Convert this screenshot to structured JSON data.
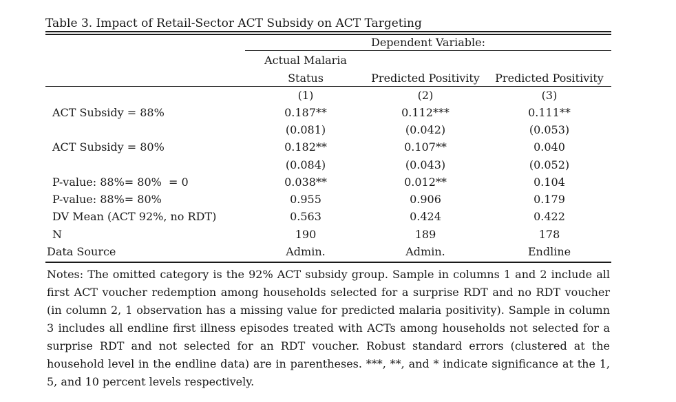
{
  "table": {
    "caption": "Table 3. Impact of Retail-Sector ACT Subsidy on ACT Targeting",
    "spanner": "Dependent Variable:",
    "headers": {
      "col1_line1": "Actual Malaria",
      "col1_line2": "Status",
      "col2": "Predicted Positivity",
      "col3": "Predicted Positivity"
    },
    "col_numbers": [
      "(1)",
      "(2)",
      "(3)"
    ],
    "rows": [
      {
        "label": "ACT Subsidy = 88%",
        "values": [
          "0.187**",
          "0.112***",
          "0.111**"
        ]
      },
      {
        "label": "",
        "values": [
          "(0.081)",
          "(0.042)",
          "(0.053)"
        ]
      },
      {
        "label": "ACT Subsidy = 80%",
        "values": [
          "0.182**",
          "0.107**",
          "0.040"
        ]
      },
      {
        "label": "",
        "values": [
          "(0.084)",
          "(0.043)",
          "(0.052)"
        ]
      },
      {
        "label": "P-value: 88%= 80%  = 0",
        "values": [
          "0.038**",
          "0.012**",
          "0.104"
        ]
      },
      {
        "label": "P-value: 88%= 80%",
        "values": [
          "0.955",
          "0.906",
          "0.179"
        ]
      },
      {
        "label": "DV Mean (ACT 92%, no RDT)",
        "values": [
          "0.563",
          "0.424",
          "0.422"
        ]
      },
      {
        "label": "N",
        "values": [
          "190",
          "189",
          "178"
        ]
      },
      {
        "label": "Data Source",
        "values": [
          "Admin.",
          "Admin.",
          "Endline"
        ]
      }
    ],
    "notes": "Notes: The omitted category is the 92% ACT subsidy group. Sample in columns 1 and 2 include all first ACT voucher redemption among households selected for a surprise RDT and no RDT voucher (in column 2, 1 observation has a missing value for predicted malaria positivity). Sample in column 3 includes all endline first illness episodes treated with ACTs among households not selected for a surprise RDT and not selected for an RDT voucher. Robust standard errors (clustered at the household level in the endline data) are in parentheses. ***, **, and * indicate significance at the 1, 5, and 10 percent levels respectively."
  }
}
